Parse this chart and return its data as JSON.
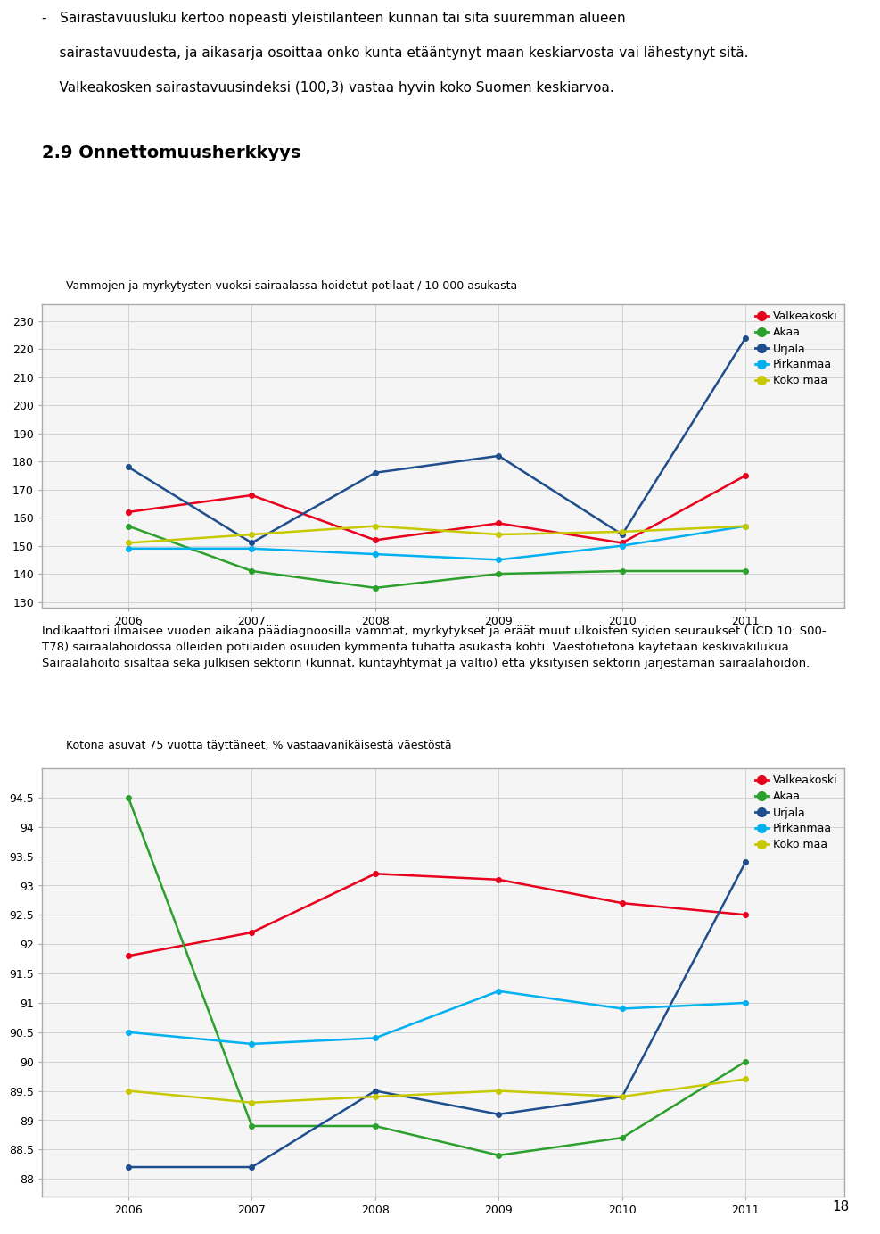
{
  "bullet_line1": "-   Sairastavuusluku kertoo nopeasti yleistilanteen kunnan tai sitä suuremman alueen",
  "bullet_line2": "     sairastavuudesta, ja aikasarja osoittaa onko kunta etääntynyt maan keskiarvosta vai lähestynyt sitä.",
  "bullet_line3": "     Valkeakosken sairastavuusindeksi (100,3) vastaa hyvin koko Suomen keskiarvoa.",
  "section_title": "2.9 Onnettomuusherkkyys",
  "chart1": {
    "title": "Vammojen ja myrkytysten vuoksi sairaalassa hoidetut potilaat / 10 000 asukasta",
    "years": [
      2006,
      2007,
      2008,
      2009,
      2010,
      2011
    ],
    "ylim": [
      128,
      236
    ],
    "yticks": [
      130,
      140,
      150,
      160,
      170,
      180,
      190,
      200,
      210,
      220,
      230
    ],
    "series": {
      "Valkeakoski": {
        "color": "#e8001c",
        "data": [
          162,
          168,
          152,
          158,
          151,
          175
        ]
      },
      "Akaa": {
        "color": "#2ca02c",
        "data": [
          157,
          141,
          135,
          140,
          141,
          141
        ]
      },
      "Urjala": {
        "color": "#1f4e8c",
        "data": [
          178,
          151,
          176,
          182,
          154,
          224
        ]
      },
      "Pirkanmaa": {
        "color": "#00b0f0",
        "data": [
          149,
          149,
          147,
          145,
          150,
          157
        ]
      },
      "Koko maa": {
        "color": "#c8c800",
        "data": [
          151,
          154,
          157,
          154,
          155,
          157
        ]
      }
    },
    "legend_order": [
      "Valkeakoski",
      "Akaa",
      "Urjala",
      "Pirkanmaa",
      "Koko maa"
    ]
  },
  "chart1_footnote_lines": [
    "Indikaattori ilmaisee vuoden aikana päädiagnoosilla vammat, myrkytykset ja eräät muut ulkoisten syiden seuraukset ( ICD 10: S00-",
    "T78) sairaalahoidossa olleiden potilaiden osuuden kymmentä tuhatta asukasta kohti. Väestötietona käytetään keskiväkilukua.",
    "Sairaalahoito sisältää sekä julkisen sektorin (kunnat, kuntayhtymät ja valtio) että yksityisen sektorin järjestämän sairaalahoidon."
  ],
  "chart2": {
    "title": "Kotona asuvat 75 vuotta täyttäneet, % vastaavanikäisestä väestöstä",
    "years": [
      2006,
      2007,
      2008,
      2009,
      2010,
      2011
    ],
    "ylim": [
      87.7,
      95.0
    ],
    "yticks": [
      88,
      88.5,
      89,
      89.5,
      90,
      90.5,
      91,
      91.5,
      92,
      92.5,
      93,
      93.5,
      94,
      94.5
    ],
    "series": {
      "Valkeakoski": {
        "color": "#e8001c",
        "data": [
          91.8,
          92.2,
          93.2,
          93.1,
          92.7,
          92.5
        ]
      },
      "Akaa": {
        "color": "#2ca02c",
        "data": [
          94.5,
          88.9,
          88.9,
          88.4,
          88.7,
          90.0
        ]
      },
      "Urjala": {
        "color": "#1f4e8c",
        "data": [
          88.2,
          88.2,
          89.5,
          89.1,
          89.4,
          93.4
        ]
      },
      "Pirkanmaa": {
        "color": "#00b0f0",
        "data": [
          90.5,
          90.3,
          90.4,
          91.2,
          90.9,
          91.0
        ]
      },
      "Koko maa": {
        "color": "#c8c800",
        "data": [
          89.5,
          89.3,
          89.4,
          89.5,
          89.4,
          89.7
        ]
      }
    },
    "legend_order": [
      "Valkeakoski",
      "Akaa",
      "Urjala",
      "Pirkanmaa",
      "Koko maa"
    ]
  },
  "page_number": "18",
  "bg_color": "#ffffff",
  "chart_bg_color": "#f5f5f5",
  "grid_color": "#cccccc",
  "text_color": "#000000",
  "border_color": "#aaaaaa"
}
